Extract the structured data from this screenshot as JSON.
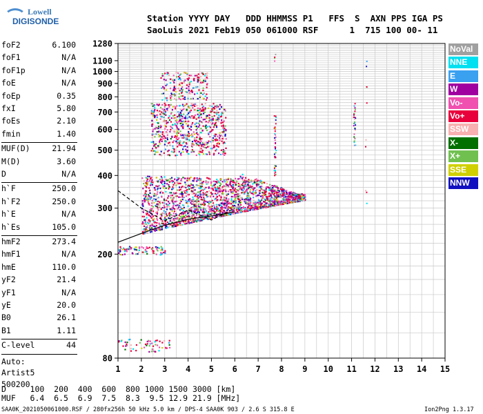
{
  "logo": {
    "line1": "Lowell",
    "line2": "DIGISONDE"
  },
  "header": {
    "labels": "Station YYYY DAY   DDD HHMMSS P1   FFS  S  AXN PPS IGA PS",
    "values": "SaoLuis 2021 Feb19 050 061000 RSF      1  715 100 00- 11"
  },
  "params": {
    "group1": [
      {
        "label": "foF2",
        "value": "6.100"
      },
      {
        "label": "foF1",
        "value": "N/A"
      },
      {
        "label": "foF1p",
        "value": "N/A"
      },
      {
        "label": "foE",
        "value": "N/A"
      },
      {
        "label": "foEp",
        "value": "0.35"
      },
      {
        "label": "fxI",
        "value": "5.80"
      },
      {
        "label": "foEs",
        "value": "2.10"
      },
      {
        "label": "fmin",
        "value": "1.40"
      }
    ],
    "group2": [
      {
        "label": "MUF(D)",
        "value": "21.94"
      },
      {
        "label": "M(D)",
        "value": "3.60"
      },
      {
        "label": "D",
        "value": "N/A"
      }
    ],
    "group3": [
      {
        "label": "h`F",
        "value": "250.0"
      },
      {
        "label": "h`F2",
        "value": "250.0"
      },
      {
        "label": "h`E",
        "value": "N/A"
      },
      {
        "label": "h`Es",
        "value": "105.0"
      }
    ],
    "group4": [
      {
        "label": "hmF2",
        "value": "273.4"
      },
      {
        "label": "hmF1",
        "value": "N/A"
      },
      {
        "label": "hmE",
        "value": "110.0"
      },
      {
        "label": "yF2",
        "value": "21.4"
      },
      {
        "label": "yF1",
        "value": "N/A"
      },
      {
        "label": "yE",
        "value": "20.0"
      },
      {
        "label": "B0",
        "value": "26.1"
      },
      {
        "label": "B1",
        "value": "1.11"
      }
    ],
    "clevel": {
      "label": "C-level",
      "value": "44"
    },
    "auto": [
      "Auto:",
      "Artist5",
      "500200"
    ]
  },
  "legend": [
    {
      "label": "NoVal",
      "color": "#a0a0a0"
    },
    {
      "label": "NNE",
      "color": "#00e0f0"
    },
    {
      "label": "E",
      "color": "#3aa0f0"
    },
    {
      "label": "W",
      "color": "#a000a0"
    },
    {
      "label": "Vo-",
      "color": "#f050b0"
    },
    {
      "label": "Vo+",
      "color": "#e8003c"
    },
    {
      "label": "SSW",
      "color": "#f8b0b0"
    },
    {
      "label": "X-",
      "color": "#007000"
    },
    {
      "label": "X+",
      "color": "#70c050"
    },
    {
      "label": "SSE",
      "color": "#d0d000"
    },
    {
      "label": "NNW",
      "color": "#1010c0"
    }
  ],
  "chart_data": {
    "type": "scatter",
    "title": "",
    "xlabel": "",
    "ylabel": "",
    "xlim": [
      1,
      15
    ],
    "ylim": [
      80,
      1280
    ],
    "yscale": "log",
    "x_ticks": [
      1,
      2,
      3,
      4,
      5,
      6,
      7,
      8,
      9,
      10,
      11,
      12,
      13,
      14,
      15
    ],
    "y_ticks": [
      80,
      200,
      300,
      400,
      500,
      600,
      700,
      800,
      900,
      1000,
      1100,
      1280
    ],
    "grid": true,
    "legend_position": "right",
    "clusters": [
      {
        "name": "F-trace",
        "x": [
          2.0,
          9.0
        ],
        "y": [
          240,
          420
        ],
        "density": 2200
      },
      {
        "name": "F-multi",
        "x": [
          2.4,
          5.6
        ],
        "y": [
          480,
          760
        ],
        "density": 700
      },
      {
        "name": "F-high",
        "x": [
          2.8,
          4.8
        ],
        "y": [
          780,
          1000
        ],
        "density": 180
      },
      {
        "name": "Es-low",
        "x": [
          1.0,
          3.2
        ],
        "y": [
          85,
          95
        ],
        "density": 60
      },
      {
        "name": "Es-trace",
        "x": [
          1.0,
          3.0
        ],
        "y": [
          200,
          215
        ],
        "density": 90
      }
    ],
    "profile_lines": [
      {
        "name": "solid",
        "points": [
          [
            1.0,
            222
          ],
          [
            2.0,
            240
          ],
          [
            3.0,
            258
          ],
          [
            4.0,
            272
          ],
          [
            5.0,
            280
          ],
          [
            6.0,
            290
          ]
        ]
      },
      {
        "name": "dashed",
        "points": [
          [
            1.0,
            350
          ],
          [
            2.0,
            300
          ],
          [
            3.0,
            268
          ],
          [
            4.0,
            295
          ],
          [
            5.0,
            270
          ],
          [
            6.0,
            300
          ]
        ]
      }
    ]
  },
  "footer": {
    "row1": "D     100  200  400  600  800 1000 1500 3000 [km]",
    "row2": "MUF   6.4  6.5  6.9  7.5  8.3  9.5 12.9 21.9 [MHz]",
    "source": "SAA0K_2021050061000.RSF / 280fx256h 50 kHz 5.0 km / DPS-4 SAA0K 903 / 2.6 S 315.8 E",
    "version": "Ion2Png 1.3.17"
  }
}
